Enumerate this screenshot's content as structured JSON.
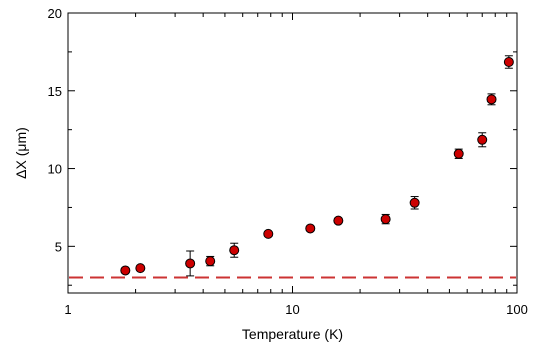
{
  "chart_data": {
    "type": "scatter",
    "xlabel": "Temperature (K)",
    "ylabel": "ΔX (μm)",
    "x_scale": "log",
    "xlim": [
      1,
      100
    ],
    "ylim": [
      2,
      20
    ],
    "x_ticks": [
      1,
      10,
      100
    ],
    "x_tick_labels": [
      "1",
      "10",
      "100"
    ],
    "y_ticks": [
      5,
      10,
      15,
      20
    ],
    "y_tick_labels": [
      "5",
      "10",
      "15",
      "20"
    ],
    "grid": false,
    "marker_color": "#cc0000",
    "reference_line": {
      "y": 3.0,
      "style": "dashed",
      "color": "#cc3333"
    },
    "points": [
      {
        "x": 1.8,
        "y": 3.45,
        "err": 0.15
      },
      {
        "x": 2.1,
        "y": 3.6,
        "err": 0.15
      },
      {
        "x": 3.5,
        "y": 3.9,
        "err": 0.8
      },
      {
        "x": 4.3,
        "y": 4.05,
        "err": 0.3
      },
      {
        "x": 5.5,
        "y": 4.75,
        "err": 0.45
      },
      {
        "x": 7.8,
        "y": 5.8,
        "err": 0.15
      },
      {
        "x": 12.0,
        "y": 6.15,
        "err": 0.15
      },
      {
        "x": 16.0,
        "y": 6.65,
        "err": 0.15
      },
      {
        "x": 26.0,
        "y": 6.75,
        "err": 0.3
      },
      {
        "x": 35.0,
        "y": 7.8,
        "err": 0.4
      },
      {
        "x": 55.0,
        "y": 10.95,
        "err": 0.3
      },
      {
        "x": 70.0,
        "y": 11.85,
        "err": 0.45
      },
      {
        "x": 77.0,
        "y": 14.45,
        "err": 0.35
      },
      {
        "x": 92.0,
        "y": 16.85,
        "err": 0.4
      }
    ]
  }
}
